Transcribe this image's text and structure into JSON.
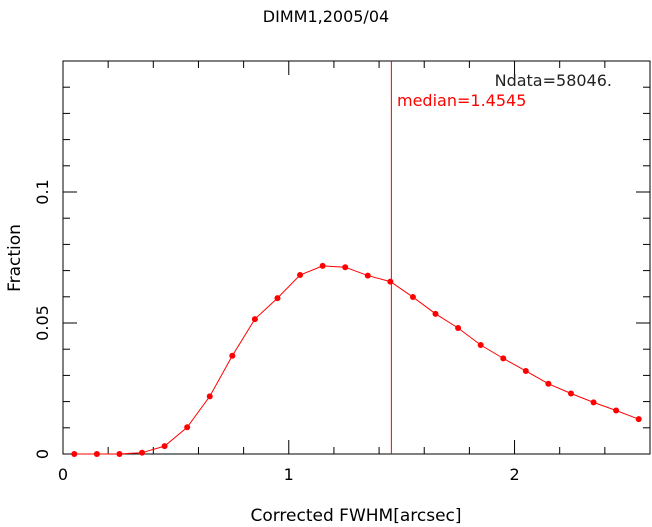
{
  "chart_data": {
    "type": "line",
    "title": "DIMM1,2005/04",
    "xlabel": "Corrected FWHM[arcsec]",
    "ylabel": "Fraction",
    "xlim": [
      0,
      2.6
    ],
    "ylim": [
      0,
      0.15
    ],
    "x_ticks": [
      0,
      1,
      2
    ],
    "x_tick_labels": [
      "0",
      "1",
      "2"
    ],
    "y_ticks": [
      0,
      0.05,
      0.1
    ],
    "y_tick_labels": [
      "0",
      "0.05",
      "0.1"
    ],
    "grid": false,
    "series": [
      {
        "color": "#ff0000",
        "x": [
          0.05,
          0.15,
          0.25,
          0.35,
          0.45,
          0.55,
          0.65,
          0.75,
          0.85,
          0.95,
          1.05,
          1.15,
          1.25,
          1.35,
          1.45,
          1.55,
          1.65,
          1.75,
          1.85,
          1.95,
          2.05,
          2.15,
          2.25,
          2.35,
          2.45,
          2.55
        ],
        "values": [
          0.0,
          0.0,
          0.0,
          0.0005,
          0.003,
          0.0102,
          0.022,
          0.0375,
          0.0515,
          0.0595,
          0.0683,
          0.0718,
          0.0713,
          0.0681,
          0.0658,
          0.0599,
          0.0535,
          0.0481,
          0.0416,
          0.0365,
          0.0317,
          0.0268,
          0.0231,
          0.0197,
          0.0166,
          0.0133
        ]
      }
    ],
    "median_line": {
      "x": 1.4545,
      "color": "#ff0000"
    },
    "annotations": [
      {
        "text": "Ndata=58046.",
        "color": "#222222"
      },
      {
        "text": "median=1.4545",
        "color": "#ff0000"
      }
    ]
  }
}
